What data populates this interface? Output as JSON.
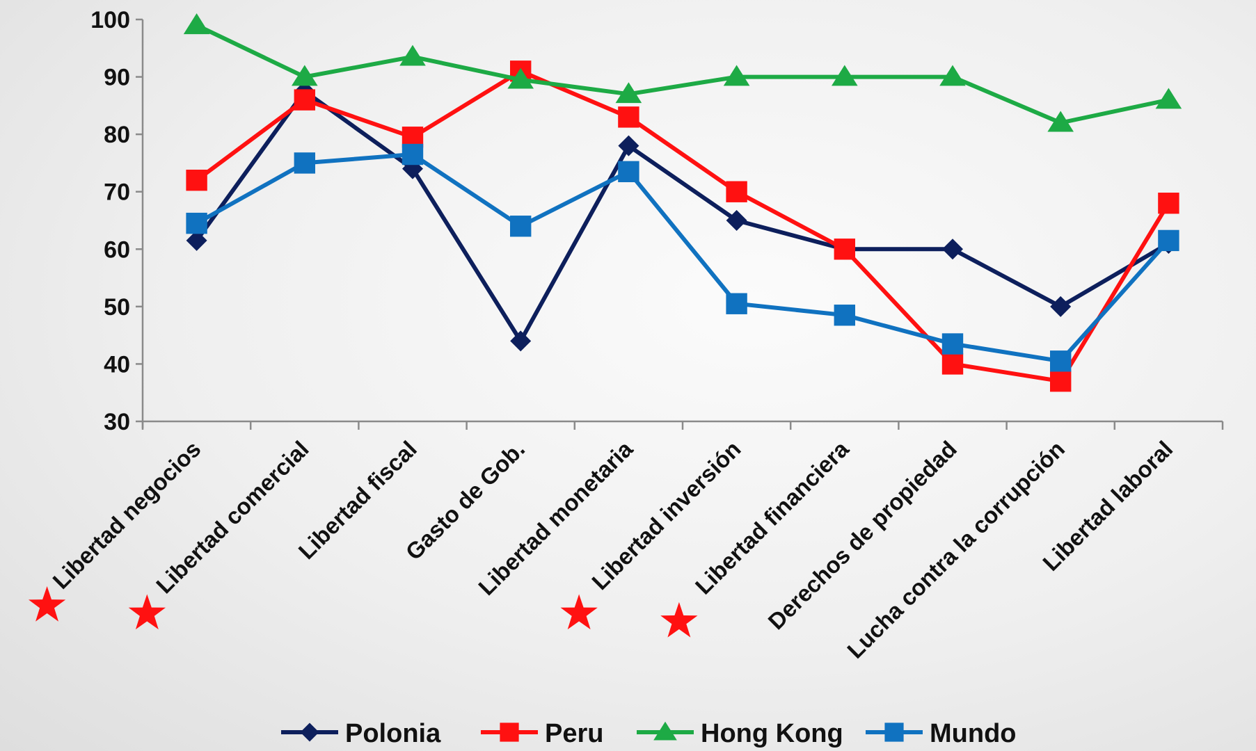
{
  "chart_data": {
    "type": "line",
    "title": "",
    "xlabel": "",
    "ylabel": "",
    "ylim": [
      30,
      100
    ],
    "yticks": [
      30,
      40,
      50,
      60,
      70,
      80,
      90,
      100
    ],
    "grid": false,
    "legend_position": "bottom",
    "categories": [
      "Libertad negocios",
      "Libertad comercial",
      "Libertad fiscal",
      "Gasto de Gob.",
      "Libertad monetaria",
      "Libertad inversión",
      "Libertad financiera",
      "Derechos de propiedad",
      "Lucha contra la corrupción",
      "Libertad laboral"
    ],
    "starred_categories": [
      0,
      1,
      5,
      6
    ],
    "star_color": "#ff1111",
    "series": [
      {
        "name": "Polonia",
        "color": "#0d1f5c",
        "marker": "diamond",
        "values": [
          61.5,
          87.5,
          74,
          44,
          78,
          65,
          60,
          60,
          50,
          61
        ]
      },
      {
        "name": "Peru",
        "color": "#ff1111",
        "marker": "square",
        "values": [
          72,
          86,
          79.5,
          91,
          83,
          70,
          60,
          40,
          37,
          68
        ]
      },
      {
        "name": "Hong Kong",
        "color": "#1daa45",
        "marker": "triangle",
        "values": [
          99,
          90,
          93.5,
          89.5,
          87,
          90,
          90,
          90,
          82,
          86
        ]
      },
      {
        "name": "Mundo",
        "color": "#1072c0",
        "marker": "square",
        "values": [
          64.5,
          75,
          76.5,
          64,
          73.5,
          50.5,
          48.5,
          43.5,
          40.5,
          61.5
        ]
      }
    ]
  }
}
